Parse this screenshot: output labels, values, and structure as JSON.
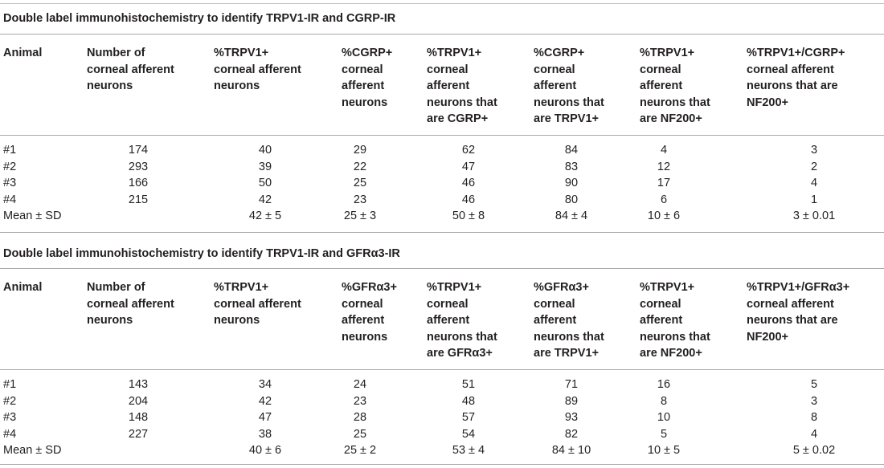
{
  "sections": [
    {
      "caption": "Double label immunohistochemistry to identify TRPV1-IR and CGRP-IR",
      "headers": [
        "Animal",
        "Number of\ncorneal afferent\nneurons",
        "%TRPV1+\ncorneal afferent\nneurons",
        "%CGRP+\ncorneal\nafferent\nneurons",
        "%TRPV1+\ncorneal\nafferent\nneurons that\nare CGRP+",
        "%CGRP+\ncorneal\nafferent\nneurons that\nare TRPV1+",
        "%TRPV1+\ncorneal\nafferent\nneurons that\nare NF200+",
        "%TRPV1+/CGRP+\ncorneal afferent\nneurons that are\nNF200+"
      ],
      "rows": [
        [
          "#1",
          "174",
          "40",
          "29",
          "62",
          "84",
          "4",
          "3"
        ],
        [
          "#2",
          "293",
          "39",
          "22",
          "47",
          "83",
          "12",
          "2"
        ],
        [
          "#3",
          "166",
          "50",
          "25",
          "46",
          "90",
          "17",
          "4"
        ],
        [
          "#4",
          "215",
          "42",
          "23",
          "46",
          "80",
          "6",
          "1"
        ],
        [
          "Mean ± SD",
          "",
          "42 ± 5",
          "25 ± 3",
          "50 ± 8",
          "84 ± 4",
          "10 ± 6",
          "3 ± 0.01"
        ]
      ]
    },
    {
      "caption": "Double label immunohistochemistry to identify TRPV1-IR and GFRα3-IR",
      "headers": [
        "Animal",
        "Number of\ncorneal afferent\nneurons",
        "%TRPV1+\ncorneal afferent\nneurons",
        "%GFRα3+\ncorneal\nafferent\nneurons",
        "%TRPV1+\ncorneal\nafferent\nneurons that\nare GFRα3+",
        "%GFRα3+\ncorneal\nafferent\nneurons that\nare TRPV1+",
        "%TRPV1+\ncorneal\nafferent\nneurons that\nare NF200+",
        "%TRPV1+/GFRα3+\ncorneal afferent\nneurons that are\nNF200+"
      ],
      "rows": [
        [
          "#1",
          "143",
          "34",
          "24",
          "51",
          "71",
          "16",
          "5"
        ],
        [
          "#2",
          "204",
          "42",
          "23",
          "48",
          "89",
          "8",
          "3"
        ],
        [
          "#3",
          "148",
          "47",
          "28",
          "57",
          "93",
          "10",
          "8"
        ],
        [
          "#4",
          "227",
          "38",
          "25",
          "54",
          "82",
          "5",
          "4"
        ],
        [
          "Mean ± SD",
          "",
          "40 ± 6",
          "25 ± 2",
          "53 ± 4",
          "84 ± 10",
          "10 ± 5",
          "5 ± 0.02"
        ]
      ]
    }
  ]
}
